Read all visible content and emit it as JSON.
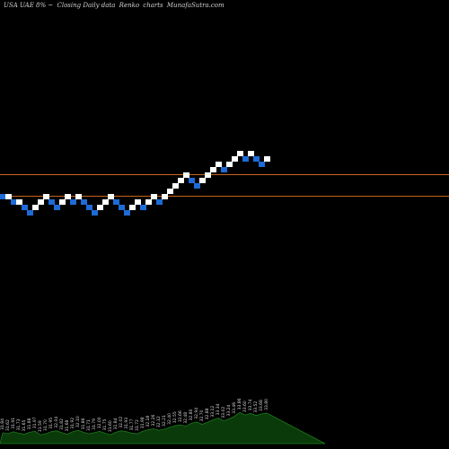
{
  "header": {
    "ticker": "USA UAE 8% ~",
    "mode": "Closing Daily data",
    "chart_kind": "Renko",
    "chart_word": "charts",
    "site": "MunafaSutra.com"
  },
  "colors": {
    "background": "#000000",
    "up_brick": "#ffffff",
    "down_brick": "#1e6bd6",
    "ref_line": "#c8641e",
    "volume_fill": "#0a3a0a",
    "volume_line": "#1c7a1c",
    "volume_label": "#d8d8d8"
  },
  "chart_data": {
    "type": "renko",
    "brick_size": 1,
    "reference_lines": [
      4,
      0
    ],
    "bricks": [
      {
        "level": 0,
        "dir": "down"
      },
      {
        "level": 0,
        "dir": "up"
      },
      {
        "level": -1,
        "dir": "down"
      },
      {
        "level": -1,
        "dir": "up"
      },
      {
        "level": -2,
        "dir": "down"
      },
      {
        "level": -3,
        "dir": "down"
      },
      {
        "level": -2,
        "dir": "up"
      },
      {
        "level": -1,
        "dir": "up"
      },
      {
        "level": 0,
        "dir": "up"
      },
      {
        "level": -1,
        "dir": "down"
      },
      {
        "level": -2,
        "dir": "down"
      },
      {
        "level": -1,
        "dir": "up"
      },
      {
        "level": 0,
        "dir": "up"
      },
      {
        "level": -1,
        "dir": "down"
      },
      {
        "level": 0,
        "dir": "up"
      },
      {
        "level": -1,
        "dir": "down"
      },
      {
        "level": -2,
        "dir": "down"
      },
      {
        "level": -3,
        "dir": "down"
      },
      {
        "level": -2,
        "dir": "up"
      },
      {
        "level": -1,
        "dir": "up"
      },
      {
        "level": 0,
        "dir": "up"
      },
      {
        "level": -1,
        "dir": "down"
      },
      {
        "level": -2,
        "dir": "down"
      },
      {
        "level": -3,
        "dir": "down"
      },
      {
        "level": -2,
        "dir": "up"
      },
      {
        "level": -1,
        "dir": "up"
      },
      {
        "level": -2,
        "dir": "down"
      },
      {
        "level": -1,
        "dir": "up"
      },
      {
        "level": 0,
        "dir": "up"
      },
      {
        "level": -1,
        "dir": "down"
      },
      {
        "level": 0,
        "dir": "up"
      },
      {
        "level": 1,
        "dir": "up"
      },
      {
        "level": 2,
        "dir": "up"
      },
      {
        "level": 3,
        "dir": "up"
      },
      {
        "level": 4,
        "dir": "up"
      },
      {
        "level": 3,
        "dir": "down"
      },
      {
        "level": 2,
        "dir": "down"
      },
      {
        "level": 3,
        "dir": "up"
      },
      {
        "level": 4,
        "dir": "up"
      },
      {
        "level": 5,
        "dir": "up"
      },
      {
        "level": 6,
        "dir": "up"
      },
      {
        "level": 5,
        "dir": "down"
      },
      {
        "level": 6,
        "dir": "up"
      },
      {
        "level": 7,
        "dir": "up"
      },
      {
        "level": 8,
        "dir": "up"
      },
      {
        "level": 7,
        "dir": "down"
      },
      {
        "level": 8,
        "dir": "up"
      },
      {
        "level": 7,
        "dir": "down"
      },
      {
        "level": 6,
        "dir": "down"
      },
      {
        "level": 7,
        "dir": "up"
      }
    ],
    "volume": {
      "values": [
        22,
        20,
        24,
        21,
        19,
        23,
        25,
        18,
        20,
        24,
        26,
        22,
        19,
        24,
        27,
        23,
        20,
        22,
        25,
        21,
        18,
        23,
        26,
        24,
        21,
        20,
        25,
        28,
        30,
        27,
        29,
        33,
        36,
        38,
        35,
        41,
        44,
        39,
        43,
        48,
        52,
        46,
        50,
        55,
        63,
        58,
        61,
        57,
        60,
        62
      ],
      "labels": [
        "31.84",
        "31.62",
        "31.91",
        "31.73",
        "31.65",
        "31.88",
        "31.97",
        "31.59",
        "31.70",
        "31.95",
        "32.04",
        "31.82",
        "31.68",
        "31.92",
        "32.10",
        "31.86",
        "31.71",
        "31.79",
        "32.00",
        "31.75",
        "31.60",
        "31.84",
        "32.02",
        "31.93",
        "31.77",
        "31.72",
        "31.98",
        "32.18",
        "32.26",
        "32.12",
        "32.21",
        "32.40",
        "32.55",
        "32.66",
        "32.48",
        "32.80",
        "32.94",
        "32.70",
        "32.88",
        "33.12",
        "33.34",
        "33.02",
        "33.24",
        "33.46",
        "33.86",
        "33.60",
        "33.74",
        "33.52",
        "33.68",
        "33.80"
      ]
    }
  }
}
